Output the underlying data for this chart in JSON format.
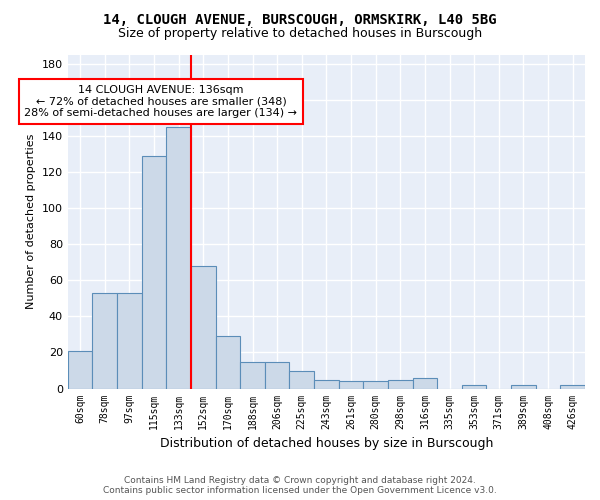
{
  "title": "14, CLOUGH AVENUE, BURSCOUGH, ORMSKIRK, L40 5BG",
  "subtitle": "Size of property relative to detached houses in Burscough",
  "xlabel": "Distribution of detached houses by size in Burscough",
  "ylabel": "Number of detached properties",
  "bar_values": [
    21,
    53,
    53,
    129,
    145,
    68,
    29,
    15,
    15,
    10,
    5,
    4,
    4,
    5,
    6,
    0,
    2,
    0,
    2,
    0,
    2
  ],
  "bin_labels": [
    "60sqm",
    "78sqm",
    "97sqm",
    "115sqm",
    "133sqm",
    "152sqm",
    "170sqm",
    "188sqm",
    "206sqm",
    "225sqm",
    "243sqm",
    "261sqm",
    "280sqm",
    "298sqm",
    "316sqm",
    "335sqm",
    "353sqm",
    "371sqm",
    "389sqm",
    "408sqm",
    "426sqm"
  ],
  "bar_color": "#ccd9e8",
  "bar_edge_color": "#5b8db8",
  "background_color": "#e8eef8",
  "grid_color": "#ffffff",
  "red_line_x": 4.5,
  "annotation_text": "14 CLOUGH AVENUE: 136sqm\n← 72% of detached houses are smaller (348)\n28% of semi-detached houses are larger (134) →",
  "annotation_box_color": "white",
  "annotation_box_edge_color": "red",
  "ylim": [
    0,
    185
  ],
  "yticks": [
    0,
    20,
    40,
    60,
    80,
    100,
    120,
    140,
    160,
    180
  ],
  "footer_line1": "Contains HM Land Registry data © Crown copyright and database right 2024.",
  "footer_line2": "Contains public sector information licensed under the Open Government Licence v3.0."
}
